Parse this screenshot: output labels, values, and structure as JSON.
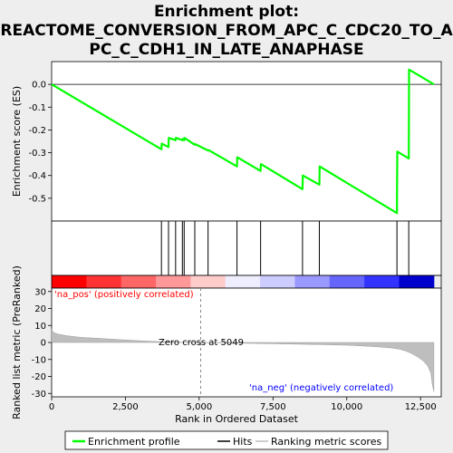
{
  "chart_data": {
    "type": "line",
    "title_lines": [
      "Enrichment plot:",
      "REACTOME_CONVERSION_FROM_APC_C_CDC20_TO_A",
      "PC_C_CDH1_IN_LATE_ANAPHASE"
    ],
    "es_panel": {
      "ylabel": "Enrichment score (ES)",
      "ylim": [
        -0.6,
        0.1
      ],
      "yticks": [
        0.0,
        -0.1,
        -0.2,
        -0.3,
        -0.4,
        -0.5
      ],
      "ytick_labels": [
        "0.0",
        "-0.1",
        "-0.2",
        "-0.3",
        "-0.4",
        "-0.5"
      ],
      "series": [
        {
          "name": "Enrichment profile",
          "color": "#00ff00",
          "x": [
            0,
            3720,
            3730,
            3960,
            3970,
            4200,
            4210,
            4430,
            4440,
            4490,
            4500,
            4850,
            4860,
            5300,
            5310,
            6280,
            6290,
            7080,
            7090,
            8500,
            8510,
            9070,
            9080,
            11700,
            11710,
            12100,
            12110,
            12950
          ],
          "y": [
            0.0,
            -0.285,
            -0.26,
            -0.275,
            -0.235,
            -0.245,
            -0.235,
            -0.245,
            -0.24,
            -0.245,
            -0.235,
            -0.265,
            -0.262,
            -0.29,
            -0.288,
            -0.36,
            -0.32,
            -0.38,
            -0.35,
            -0.46,
            -0.4,
            -0.44,
            -0.36,
            -0.565,
            -0.295,
            -0.325,
            0.065,
            0.0
          ]
        }
      ]
    },
    "hits": {
      "name": "Hits",
      "color": "#000000",
      "x": [
        3720,
        3960,
        4200,
        4430,
        4490,
        4850,
        5300,
        6280,
        7080,
        8500,
        9070,
        11700,
        12100
      ]
    },
    "ranking_bar": {
      "colors_left_to_right": [
        "#ff0000",
        "#ff3333",
        "#ff6666",
        "#ff9999",
        "#ffcccc",
        "#eeeeff",
        "#ccccff",
        "#9999ff",
        "#6666ff",
        "#3333ff",
        "#0000cc"
      ]
    },
    "metric_panel": {
      "ylabel": "Ranked list metric (PreRanked)",
      "ylim": [
        -32,
        32
      ],
      "yticks": [
        30,
        20,
        10,
        0,
        -10,
        -20,
        -30
      ],
      "ytick_labels": [
        "30",
        "20",
        "10",
        "0",
        "-10",
        "-20",
        "-30"
      ],
      "series": [
        {
          "name": "Ranking metric scores",
          "color": "#bebebe",
          "x": [
            0,
            50,
            200,
            500,
            1000,
            1500,
            2000,
            2500,
            3000,
            3500,
            4000,
            4500,
            5049,
            6000,
            7000,
            8000,
            9000,
            10000,
            10500,
            11000,
            11500,
            11800,
            12000,
            12200,
            12400,
            12600,
            12750,
            12850,
            12900,
            12950
          ],
          "y": [
            8,
            6,
            5,
            4,
            3,
            2.5,
            2,
            1.5,
            1,
            0.6,
            0.3,
            0.1,
            0,
            -0.3,
            -0.6,
            -0.9,
            -1.2,
            -1.6,
            -2,
            -2.5,
            -3.2,
            -4,
            -5,
            -6.5,
            -8.5,
            -11,
            -14,
            -18,
            -25,
            -29
          ]
        }
      ],
      "annotations": {
        "pos_label": "'na_pos' (positively correlated)",
        "pos_color": "#ff0000",
        "neg_label": "'na_neg' (negatively correlated)",
        "neg_color": "#0000ff",
        "zero_cross_label": "Zero cross at 5049",
        "zero_cross_x": 5049
      }
    },
    "xaxis": {
      "label": "Rank in Ordered Dataset",
      "xlim": [
        0,
        13200
      ],
      "ticks": [
        0,
        2500,
        5000,
        7500,
        10000,
        12500
      ],
      "tick_labels": [
        "0",
        "2,500",
        "5,000",
        "7,500",
        "10,000",
        "12,500"
      ],
      "n_genes": 12950
    },
    "legend": {
      "placement": "bottom",
      "items": [
        "Enrichment profile",
        "Hits",
        "Ranking metric scores"
      ]
    }
  }
}
